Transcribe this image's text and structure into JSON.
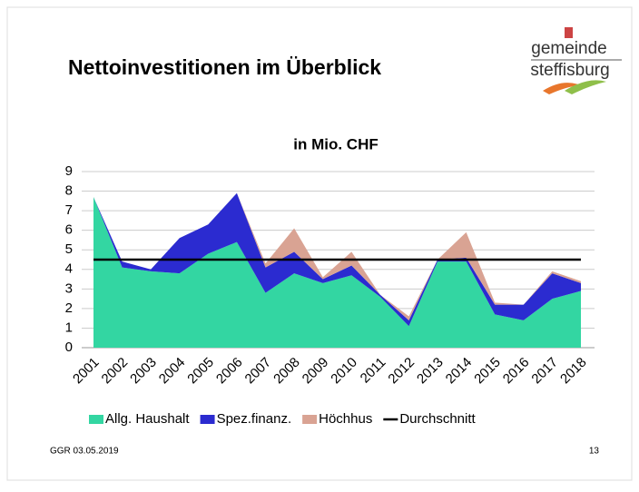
{
  "slide": {
    "title": "Nettoinvestitionen im Überblick",
    "logo_top": "gemeinde",
    "logo_bottom": "steffisburg",
    "footer_left": "GGR 03.05.2019",
    "footer_right": "13"
  },
  "chart_data": {
    "type": "stacked_area",
    "title": "in Mio. CHF",
    "categories": [
      "2001",
      "2002",
      "2003",
      "2004",
      "2005",
      "2006",
      "2007",
      "2008",
      "2009",
      "2010",
      "2011",
      "2012",
      "2013",
      "2014",
      "2015",
      "2016",
      "2017",
      "2018"
    ],
    "series": [
      {
        "name": "Allg. Haushalt",
        "color": "#33d6a2",
        "values": [
          7.7,
          4.1,
          3.9,
          3.8,
          4.8,
          5.4,
          2.8,
          3.8,
          3.3,
          3.7,
          2.6,
          1.1,
          4.4,
          4.4,
          1.7,
          1.4,
          2.5,
          2.9
        ]
      },
      {
        "name": "Spez.finanz.",
        "color": "#2b2bd0",
        "values": [
          0,
          0.3,
          0.1,
          1.8,
          1.5,
          2.5,
          1.3,
          1.1,
          0.2,
          0.5,
          0.1,
          0.3,
          0.1,
          0.2,
          0.5,
          0.8,
          1.3,
          0.4
        ]
      },
      {
        "name": "Höchhus",
        "color": "#d9a393",
        "values": [
          0,
          0,
          0,
          0,
          0,
          0,
          0.2,
          1.2,
          0.1,
          0.7,
          0,
          0.2,
          0,
          1.3,
          0.1,
          0,
          0.1,
          0.1
        ]
      },
      {
        "name": "Durchschnitt",
        "color": "#000000",
        "type": "line",
        "values": [
          4.5,
          4.5,
          4.5,
          4.5,
          4.5,
          4.5,
          4.5,
          4.5,
          4.5,
          4.5,
          4.5,
          4.5,
          4.5,
          4.5,
          4.5,
          4.5,
          4.5,
          4.5
        ]
      }
    ],
    "ylim": [
      0,
      9
    ],
    "yticks": [
      0,
      1,
      2,
      3,
      4,
      5,
      6,
      7,
      8,
      9
    ],
    "grid": true,
    "legend": "bottom"
  }
}
